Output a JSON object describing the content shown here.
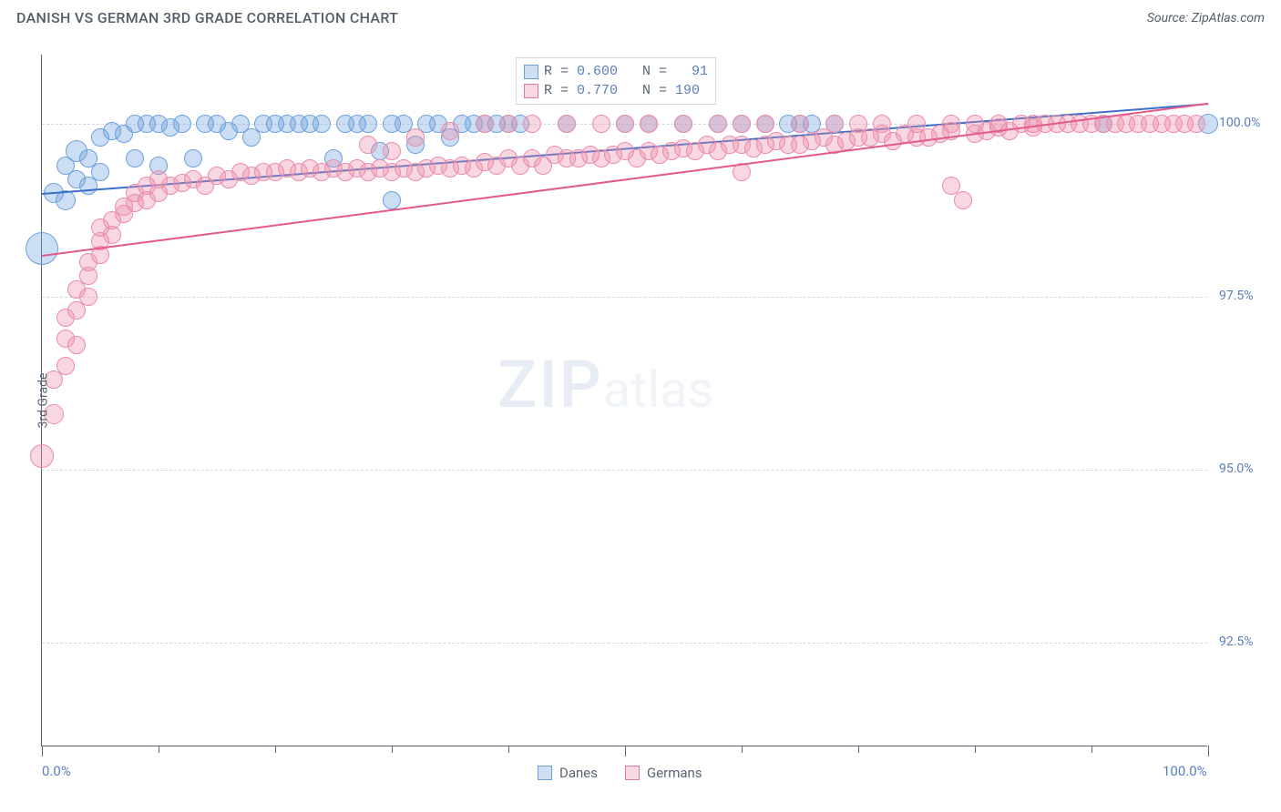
{
  "title": "DANISH VS GERMAN 3RD GRADE CORRELATION CHART",
  "source": "Source: ZipAtlas.com",
  "watermark_zip": "ZIP",
  "watermark_atlas": "atlas",
  "y_axis_title": "3rd Grade",
  "chart": {
    "type": "scatter",
    "background_color": "#ffffff",
    "grid_color": "#d4d9df",
    "axis_color": "#5a6573",
    "label_color": "#5b7fbd",
    "xlim": [
      0,
      100
    ],
    "ylim": [
      91,
      101
    ],
    "y_ticks": [
      {
        "v": 100.0,
        "label": "100.0%"
      },
      {
        "v": 97.5,
        "label": "97.5%"
      },
      {
        "v": 95.0,
        "label": "95.0%"
      },
      {
        "v": 92.5,
        "label": "92.5%"
      }
    ],
    "x_ticks_minor": [
      0,
      10,
      20,
      30,
      40,
      50,
      60,
      70,
      80,
      90,
      100
    ],
    "x_ticks_major": [
      0,
      50,
      100
    ],
    "x_labels": [
      {
        "v": 0,
        "label": "0.0%"
      },
      {
        "v": 100,
        "label": "100.0%"
      }
    ],
    "series": [
      {
        "name": "Danes",
        "color_fill": "rgba(110,160,220,0.35)",
        "color_stroke": "#6ea0dc",
        "swatch_fill": "#cfe0f3",
        "swatch_stroke": "#6ea0dc",
        "trend_color": "#3a6fc9",
        "trend": {
          "x1": 0,
          "y1": 99.0,
          "x2": 100,
          "y2": 100.3
        },
        "r_value": "0.600",
        "n_value": "91",
        "marker_radius": 9,
        "points": [
          [
            0,
            98.2,
            18
          ],
          [
            1,
            99.0,
            11
          ],
          [
            2,
            98.9,
            11
          ],
          [
            2,
            99.4,
            10
          ],
          [
            3,
            99.2,
            10
          ],
          [
            3,
            99.6,
            12
          ],
          [
            4,
            99.1,
            10
          ],
          [
            4,
            99.5,
            10
          ],
          [
            5,
            99.3,
            10
          ],
          [
            5,
            99.8,
            10
          ],
          [
            6,
            99.9,
            10
          ],
          [
            7,
            99.85,
            10
          ],
          [
            8,
            100,
            10
          ],
          [
            8,
            99.5,
            10
          ],
          [
            9,
            100,
            10
          ],
          [
            10,
            100,
            10
          ],
          [
            10,
            99.4,
            10
          ],
          [
            11,
            99.95,
            10
          ],
          [
            12,
            100,
            10
          ],
          [
            13,
            99.5,
            10
          ],
          [
            14,
            100,
            10
          ],
          [
            15,
            100,
            10
          ],
          [
            16,
            99.9,
            10
          ],
          [
            17,
            100,
            10
          ],
          [
            18,
            99.8,
            10
          ],
          [
            19,
            100,
            10
          ],
          [
            20,
            100,
            10
          ],
          [
            21,
            100,
            10
          ],
          [
            22,
            100,
            10
          ],
          [
            23,
            100,
            10
          ],
          [
            24,
            100,
            10
          ],
          [
            25,
            99.5,
            10
          ],
          [
            26,
            100,
            10
          ],
          [
            27,
            100,
            10
          ],
          [
            28,
            100,
            10
          ],
          [
            29,
            99.6,
            10
          ],
          [
            30,
            100,
            10
          ],
          [
            30,
            98.9,
            10
          ],
          [
            31,
            100,
            10
          ],
          [
            32,
            99.7,
            10
          ],
          [
            33,
            100,
            10
          ],
          [
            34,
            100,
            10
          ],
          [
            35,
            99.8,
            10
          ],
          [
            36,
            100,
            10
          ],
          [
            37,
            100,
            10
          ],
          [
            38,
            100,
            10
          ],
          [
            39,
            100,
            10
          ],
          [
            40,
            100,
            10
          ],
          [
            41,
            100,
            10
          ],
          [
            45,
            100,
            10
          ],
          [
            50,
            100,
            10
          ],
          [
            52,
            100,
            10
          ],
          [
            55,
            100,
            10
          ],
          [
            58,
            100,
            10
          ],
          [
            60,
            100,
            10
          ],
          [
            62,
            100,
            10
          ],
          [
            64,
            100,
            10
          ],
          [
            65,
            100,
            10
          ],
          [
            66,
            100,
            10
          ],
          [
            68,
            100,
            10
          ],
          [
            91,
            100,
            10
          ],
          [
            100,
            100,
            11
          ]
        ]
      },
      {
        "name": "Germans",
        "color_fill": "rgba(235,140,170,0.35)",
        "color_stroke": "#eb8caa",
        "swatch_fill": "#f8d8e2",
        "swatch_stroke": "#e57aa0",
        "trend_color": "#e35a8d",
        "trend": {
          "x1": 0,
          "y1": 98.1,
          "x2": 100,
          "y2": 100.3
        },
        "r_value": "0.770",
        "n_value": "190",
        "marker_radius": 9,
        "points": [
          [
            0,
            95.2,
            13
          ],
          [
            1,
            95.8,
            11
          ],
          [
            1,
            96.3,
            10
          ],
          [
            2,
            96.5,
            10
          ],
          [
            2,
            96.9,
            10
          ],
          [
            2,
            97.2,
            10
          ],
          [
            3,
            96.8,
            10
          ],
          [
            3,
            97.3,
            10
          ],
          [
            3,
            97.6,
            10
          ],
          [
            4,
            97.5,
            10
          ],
          [
            4,
            97.8,
            10
          ],
          [
            4,
            98.0,
            10
          ],
          [
            5,
            98.1,
            10
          ],
          [
            5,
            98.3,
            10
          ],
          [
            5,
            98.5,
            10
          ],
          [
            6,
            98.4,
            10
          ],
          [
            6,
            98.6,
            10
          ],
          [
            7,
            98.7,
            10
          ],
          [
            7,
            98.8,
            10
          ],
          [
            8,
            98.85,
            10
          ],
          [
            8,
            99.0,
            10
          ],
          [
            9,
            98.9,
            10
          ],
          [
            9,
            99.1,
            10
          ],
          [
            10,
            99.0,
            10
          ],
          [
            10,
            99.2,
            10
          ],
          [
            11,
            99.1,
            10
          ],
          [
            12,
            99.15,
            10
          ],
          [
            13,
            99.2,
            10
          ],
          [
            14,
            99.1,
            10
          ],
          [
            15,
            99.25,
            10
          ],
          [
            16,
            99.2,
            10
          ],
          [
            17,
            99.3,
            10
          ],
          [
            18,
            99.25,
            10
          ],
          [
            19,
            99.3,
            10
          ],
          [
            20,
            99.3,
            10
          ],
          [
            21,
            99.35,
            10
          ],
          [
            22,
            99.3,
            10
          ],
          [
            23,
            99.35,
            10
          ],
          [
            24,
            99.3,
            10
          ],
          [
            25,
            99.35,
            10
          ],
          [
            26,
            99.3,
            10
          ],
          [
            27,
            99.35,
            10
          ],
          [
            28,
            99.3,
            10
          ],
          [
            28,
            99.7,
            10
          ],
          [
            29,
            99.35,
            10
          ],
          [
            30,
            99.3,
            10
          ],
          [
            30,
            99.6,
            10
          ],
          [
            31,
            99.35,
            10
          ],
          [
            32,
            99.3,
            10
          ],
          [
            32,
            99.8,
            10
          ],
          [
            33,
            99.35,
            10
          ],
          [
            34,
            99.4,
            10
          ],
          [
            35,
            99.35,
            10
          ],
          [
            35,
            99.9,
            10
          ],
          [
            36,
            99.4,
            10
          ],
          [
            37,
            99.35,
            10
          ],
          [
            38,
            99.45,
            10
          ],
          [
            38,
            100,
            10
          ],
          [
            39,
            99.4,
            10
          ],
          [
            40,
            99.5,
            10
          ],
          [
            40,
            100,
            10
          ],
          [
            41,
            99.4,
            10
          ],
          [
            42,
            99.5,
            10
          ],
          [
            42,
            100,
            10
          ],
          [
            43,
            99.4,
            10
          ],
          [
            44,
            99.55,
            10
          ],
          [
            45,
            99.5,
            10
          ],
          [
            45,
            100,
            10
          ],
          [
            46,
            99.5,
            10
          ],
          [
            47,
            99.55,
            10
          ],
          [
            48,
            99.5,
            10
          ],
          [
            48,
            100,
            10
          ],
          [
            49,
            99.55,
            10
          ],
          [
            50,
            99.6,
            10
          ],
          [
            50,
            100,
            10
          ],
          [
            51,
            99.5,
            10
          ],
          [
            52,
            99.6,
            10
          ],
          [
            52,
            100,
            10
          ],
          [
            53,
            99.55,
            10
          ],
          [
            54,
            99.6,
            10
          ],
          [
            55,
            99.65,
            10
          ],
          [
            55,
            100,
            10
          ],
          [
            56,
            99.6,
            10
          ],
          [
            57,
            99.7,
            10
          ],
          [
            58,
            99.6,
            10
          ],
          [
            58,
            100,
            10
          ],
          [
            59,
            99.7,
            10
          ],
          [
            60,
            99.3,
            10
          ],
          [
            60,
            99.7,
            10
          ],
          [
            60,
            100,
            10
          ],
          [
            61,
            99.65,
            10
          ],
          [
            62,
            99.7,
            10
          ],
          [
            62,
            100,
            10
          ],
          [
            63,
            99.75,
            10
          ],
          [
            64,
            99.7,
            10
          ],
          [
            65,
            99.7,
            10
          ],
          [
            65,
            100,
            10
          ],
          [
            66,
            99.75,
            10
          ],
          [
            67,
            99.8,
            10
          ],
          [
            68,
            99.7,
            10
          ],
          [
            68,
            100,
            10
          ],
          [
            69,
            99.75,
            10
          ],
          [
            70,
            99.8,
            10
          ],
          [
            70,
            100,
            10
          ],
          [
            71,
            99.8,
            10
          ],
          [
            72,
            99.85,
            10
          ],
          [
            72,
            100,
            10
          ],
          [
            73,
            99.75,
            10
          ],
          [
            74,
            99.85,
            10
          ],
          [
            75,
            99.8,
            10
          ],
          [
            75,
            100,
            10
          ],
          [
            76,
            99.8,
            10
          ],
          [
            77,
            99.85,
            10
          ],
          [
            78,
            99.9,
            10
          ],
          [
            78,
            99.1,
            10
          ],
          [
            78,
            100,
            10
          ],
          [
            79,
            98.9,
            10
          ],
          [
            80,
            99.85,
            10
          ],
          [
            80,
            100,
            10
          ],
          [
            81,
            99.9,
            10
          ],
          [
            82,
            99.95,
            10
          ],
          [
            82,
            100,
            10
          ],
          [
            83,
            99.9,
            10
          ],
          [
            84,
            100,
            10
          ],
          [
            85,
            99.95,
            10
          ],
          [
            85,
            100,
            10
          ],
          [
            86,
            100,
            10
          ],
          [
            87,
            100,
            10
          ],
          [
            88,
            100,
            10
          ],
          [
            89,
            100,
            10
          ],
          [
            90,
            100,
            10
          ],
          [
            91,
            100,
            10
          ],
          [
            92,
            100,
            10
          ],
          [
            93,
            100,
            10
          ],
          [
            94,
            100,
            10
          ],
          [
            95,
            100,
            10
          ],
          [
            96,
            100,
            10
          ],
          [
            97,
            100,
            10
          ],
          [
            98,
            100,
            10
          ],
          [
            99,
            100,
            10
          ]
        ]
      }
    ]
  },
  "legend_box": {
    "rows": [
      {
        "swatch": 0,
        "text_prefix": "R = ",
        "r": "0.600",
        "mid": "   N = ",
        "n": "  91"
      },
      {
        "swatch": 1,
        "text_prefix": "R = ",
        "r": "0.770",
        "mid": "   N = ",
        "n": "190"
      }
    ]
  },
  "bottom_legend": {
    "items": [
      {
        "swatch": 0,
        "label": "Danes"
      },
      {
        "swatch": 1,
        "label": "Germans"
      }
    ]
  }
}
